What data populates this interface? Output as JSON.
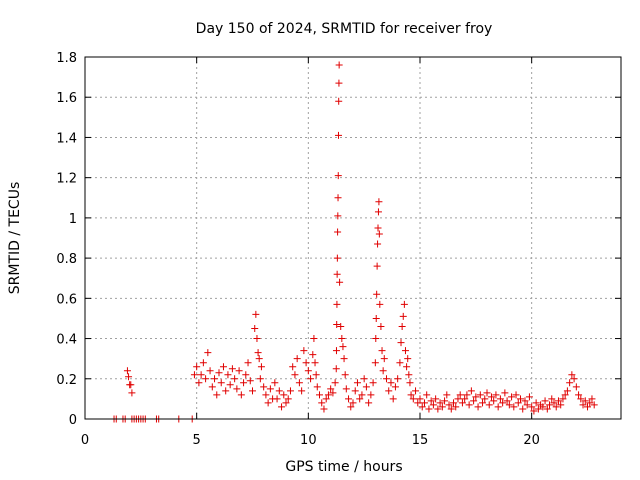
{
  "chart_data": {
    "type": "scatter",
    "title": "Day 150 of 2024, SRMTID for receiver froy",
    "xlabel": "GPS time / hours",
    "ylabel": "SRMTID / TECUs",
    "xlim": [
      0,
      24
    ],
    "ylim": [
      0,
      1.8
    ],
    "xticks": [
      0,
      5,
      10,
      15,
      20
    ],
    "xtick_labels": [
      "0",
      "5",
      "10",
      "15",
      "20"
    ],
    "yticks": [
      0,
      0.2,
      0.4,
      0.6,
      0.8,
      1.0,
      1.2,
      1.4,
      1.6,
      1.8
    ],
    "ytick_labels": [
      "0",
      "0.2",
      "0.4",
      "0.6",
      "0.8",
      "1",
      "1.2",
      "1.4",
      "1.6",
      "1.8"
    ],
    "grid": true,
    "marker": "+",
    "color": "#e00000",
    "series": [
      {
        "name": "SRMTID",
        "x": [
          1.3,
          1.4,
          1.7,
          1.8,
          2.1,
          2.2,
          2.3,
          2.4,
          2.5,
          2.6,
          2.7,
          3.2,
          3.3,
          4.2,
          4.8,
          1.9,
          1.95,
          2.0,
          2.05,
          2.1,
          4.9,
          5.0,
          5.1,
          5.2,
          5.3,
          5.4,
          5.5,
          5.6,
          5.7,
          5.8,
          5.9,
          6.0,
          6.1,
          6.2,
          6.3,
          6.4,
          6.5,
          6.6,
          6.7,
          6.8,
          6.9,
          7.0,
          7.1,
          7.2,
          7.3,
          7.4,
          7.5,
          7.6,
          7.65,
          7.7,
          7.75,
          7.8,
          7.85,
          7.9,
          8.0,
          8.1,
          8.2,
          8.3,
          8.4,
          8.5,
          8.6,
          8.7,
          8.8,
          8.9,
          9.0,
          9.1,
          9.2,
          9.3,
          9.4,
          9.5,
          9.6,
          9.7,
          9.8,
          9.9,
          10.0,
          10.1,
          10.2,
          10.25,
          10.3,
          10.35,
          10.4,
          10.5,
          10.6,
          10.7,
          10.8,
          10.9,
          11.0,
          11.1,
          11.2,
          11.25,
          11.26,
          11.27,
          11.28,
          11.29,
          11.3,
          11.31,
          11.32,
          11.33,
          11.34,
          11.35,
          11.36,
          11.37,
          11.38,
          11.4,
          11.45,
          11.5,
          11.55,
          11.6,
          11.65,
          11.7,
          11.8,
          11.9,
          12.0,
          12.1,
          12.2,
          12.3,
          12.4,
          12.5,
          12.6,
          12.7,
          12.8,
          12.9,
          13.0,
          13.02,
          13.04,
          13.06,
          13.08,
          13.1,
          13.12,
          13.14,
          13.16,
          13.18,
          13.2,
          13.25,
          13.3,
          13.35,
          13.4,
          13.5,
          13.6,
          13.7,
          13.8,
          13.9,
          14.0,
          14.1,
          14.15,
          14.2,
          14.25,
          14.3,
          14.35,
          14.4,
          14.45,
          14.5,
          14.55,
          14.6,
          14.7,
          14.8,
          14.9,
          15.0,
          15.1,
          15.2,
          15.3,
          15.4,
          15.5,
          15.6,
          15.7,
          15.8,
          15.9,
          16.0,
          16.1,
          16.2,
          16.3,
          16.4,
          16.5,
          16.6,
          16.7,
          16.8,
          16.9,
          17.0,
          17.1,
          17.2,
          17.3,
          17.4,
          17.5,
          17.6,
          17.7,
          17.8,
          17.9,
          18.0,
          18.1,
          18.2,
          18.3,
          18.4,
          18.5,
          18.6,
          18.7,
          18.8,
          18.9,
          19.0,
          19.1,
          19.2,
          19.3,
          19.4,
          19.5,
          19.6,
          19.7,
          19.8,
          19.9,
          20.0,
          20.1,
          20.2,
          20.3,
          20.4,
          20.5,
          20.6,
          20.7,
          20.8,
          20.9,
          21.0,
          21.1,
          21.2,
          21.3,
          21.4,
          21.5,
          21.6,
          21.7,
          21.8,
          21.9,
          22.0,
          22.1,
          22.2,
          22.3,
          22.4,
          22.5,
          22.6,
          22.7,
          22.8
        ],
        "y": [
          0.0,
          0.0,
          0.0,
          0.0,
          0.0,
          0.0,
          0.0,
          0.0,
          0.0,
          0.0,
          0.0,
          0.0,
          0.0,
          0.0,
          0.0,
          0.24,
          0.21,
          0.17,
          0.17,
          0.13,
          0.22,
          0.26,
          0.18,
          0.22,
          0.28,
          0.2,
          0.33,
          0.24,
          0.16,
          0.2,
          0.12,
          0.23,
          0.18,
          0.26,
          0.14,
          0.22,
          0.17,
          0.25,
          0.2,
          0.15,
          0.24,
          0.12,
          0.18,
          0.22,
          0.28,
          0.19,
          0.14,
          0.45,
          0.52,
          0.4,
          0.33,
          0.3,
          0.2,
          0.26,
          0.16,
          0.12,
          0.08,
          0.15,
          0.1,
          0.18,
          0.1,
          0.14,
          0.06,
          0.12,
          0.08,
          0.1,
          0.14,
          0.26,
          0.22,
          0.3,
          0.18,
          0.14,
          0.34,
          0.28,
          0.24,
          0.2,
          0.32,
          0.4,
          0.28,
          0.22,
          0.16,
          0.12,
          0.08,
          0.05,
          0.1,
          0.12,
          0.15,
          0.13,
          0.18,
          0.25,
          0.34,
          0.47,
          0.57,
          0.72,
          0.8,
          0.93,
          1.01,
          1.1,
          1.21,
          1.41,
          1.58,
          1.67,
          1.76,
          0.68,
          0.46,
          0.4,
          0.36,
          0.3,
          0.22,
          0.15,
          0.1,
          0.06,
          0.08,
          0.14,
          0.18,
          0.1,
          0.12,
          0.2,
          0.16,
          0.08,
          0.12,
          0.18,
          0.28,
          0.4,
          0.5,
          0.62,
          0.76,
          0.87,
          0.95,
          1.03,
          1.08,
          0.92,
          0.57,
          0.46,
          0.34,
          0.24,
          0.3,
          0.2,
          0.14,
          0.18,
          0.1,
          0.16,
          0.2,
          0.28,
          0.38,
          0.46,
          0.51,
          0.57,
          0.34,
          0.26,
          0.3,
          0.22,
          0.18,
          0.12,
          0.1,
          0.14,
          0.08,
          0.1,
          0.06,
          0.08,
          0.12,
          0.05,
          0.09,
          0.07,
          0.1,
          0.05,
          0.08,
          0.06,
          0.09,
          0.12,
          0.07,
          0.05,
          0.08,
          0.06,
          0.1,
          0.12,
          0.08,
          0.1,
          0.12,
          0.07,
          0.14,
          0.09,
          0.11,
          0.06,
          0.12,
          0.08,
          0.1,
          0.13,
          0.07,
          0.11,
          0.09,
          0.12,
          0.06,
          0.1,
          0.08,
          0.13,
          0.09,
          0.07,
          0.11,
          0.06,
          0.12,
          0.08,
          0.1,
          0.05,
          0.09,
          0.07,
          0.11,
          0.06,
          0.04,
          0.08,
          0.05,
          0.07,
          0.06,
          0.09,
          0.05,
          0.07,
          0.1,
          0.08,
          0.06,
          0.09,
          0.07,
          0.1,
          0.12,
          0.14,
          0.18,
          0.22,
          0.2,
          0.16,
          0.12,
          0.1,
          0.07,
          0.09,
          0.06,
          0.08,
          0.1,
          0.07
        ]
      }
    ]
  }
}
